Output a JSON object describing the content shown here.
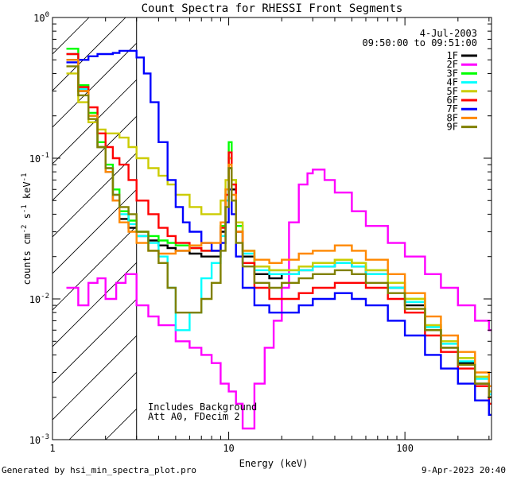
{
  "chart_data": {
    "type": "line",
    "title": "Count Spectra for RHESSI Front Segments",
    "xlabel": "Energy (keV)",
    "ylabel_parts": [
      "counts cm",
      "-2",
      " s",
      "-1",
      " keV",
      "-1"
    ],
    "xscale": "log",
    "yscale": "log",
    "xlim": [
      1,
      310
    ],
    "ylim": [
      0.001,
      1
    ],
    "x_tick_labels": [
      "1",
      "10",
      "100"
    ],
    "x_tick_values": [
      1,
      10,
      100
    ],
    "y_tick_labels": [
      {
        "base": "10",
        "exp": "-3",
        "value": 0.001
      },
      {
        "base": "10",
        "exp": "-2",
        "value": 0.01
      },
      {
        "base": "10",
        "exp": "-1",
        "value": 0.1
      },
      {
        "base": "10",
        "exp": "0",
        "value": 1
      }
    ],
    "legend_position": "top-right",
    "legend_header": [
      "4-Jul-2003",
      "09:50:00 to 09:51:00"
    ],
    "annotations": [
      "Includes Background",
      "Att A0, FDecim 2"
    ],
    "shaded_region": {
      "from": 1,
      "to": 3,
      "style": "diagonal-hatch"
    },
    "footer_left": "Generated by hsi_min_spectra_plot.pro",
    "footer_right": "9-Apr-2023 20:40",
    "series": [
      {
        "name": "1F",
        "color": "#000000",
        "x": [
          1.2,
          1.4,
          1.6,
          1.8,
          2.0,
          2.2,
          2.4,
          2.7,
          3.0,
          3.5,
          4.0,
          4.5,
          5.0,
          6.0,
          7.0,
          8.0,
          9.0,
          9.6,
          10.0,
          10.4,
          11.0,
          12.0,
          14.0,
          17.0,
          20.0,
          25.0,
          30.0,
          40.0,
          50.0,
          60.0,
          80.0,
          100.0,
          130.0,
          160.0,
          200.0,
          250.0,
          300.0
        ],
        "y": [
          0.5,
          0.3,
          0.2,
          0.12,
          0.08,
          0.05,
          0.037,
          0.032,
          0.028,
          0.026,
          0.024,
          0.023,
          0.022,
          0.021,
          0.02,
          0.02,
          0.03,
          0.05,
          0.085,
          0.06,
          0.03,
          0.02,
          0.015,
          0.014,
          0.015,
          0.016,
          0.017,
          0.018,
          0.017,
          0.015,
          0.012,
          0.009,
          0.006,
          0.0045,
          0.0035,
          0.0025,
          0.002
        ]
      },
      {
        "name": "2F",
        "color": "#ff00ff",
        "x": [
          1.2,
          1.4,
          1.6,
          1.8,
          2.0,
          2.3,
          2.6,
          3.0,
          3.5,
          4.0,
          5.0,
          6.0,
          7.0,
          8.0,
          9.0,
          10.0,
          11.0,
          12.0,
          14.0,
          16.0,
          18.0,
          20.0,
          22.0,
          25.0,
          28.0,
          30.0,
          35.0,
          40.0,
          50.0,
          60.0,
          80.0,
          100.0,
          130.0,
          160.0,
          200.0,
          250.0,
          300.0
        ],
        "y": [
          0.012,
          0.009,
          0.013,
          0.014,
          0.01,
          0.013,
          0.015,
          0.009,
          0.0075,
          0.0065,
          0.005,
          0.0045,
          0.004,
          0.0035,
          0.0025,
          0.0022,
          0.0018,
          0.0012,
          0.0025,
          0.0045,
          0.007,
          0.012,
          0.035,
          0.065,
          0.078,
          0.083,
          0.07,
          0.057,
          0.042,
          0.033,
          0.025,
          0.02,
          0.015,
          0.012,
          0.009,
          0.007,
          0.006
        ]
      },
      {
        "name": "3F",
        "color": "#00ff00",
        "x": [
          1.2,
          1.4,
          1.6,
          1.8,
          2.0,
          2.2,
          2.4,
          2.7,
          3.0,
          3.5,
          4.0,
          4.5,
          5.0,
          6.0,
          7.0,
          8.0,
          9.0,
          9.6,
          10.0,
          10.4,
          11.0,
          12.0,
          14.0,
          17.0,
          20.0,
          25.0,
          30.0,
          40.0,
          50.0,
          60.0,
          80.0,
          100.0,
          130.0,
          160.0,
          200.0,
          250.0,
          300.0
        ],
        "y": [
          0.6,
          0.33,
          0.21,
          0.13,
          0.09,
          0.06,
          0.042,
          0.036,
          0.03,
          0.028,
          0.026,
          0.025,
          0.024,
          0.023,
          0.022,
          0.022,
          0.033,
          0.06,
          0.13,
          0.07,
          0.033,
          0.022,
          0.017,
          0.016,
          0.016,
          0.017,
          0.018,
          0.019,
          0.018,
          0.016,
          0.013,
          0.01,
          0.0065,
          0.005,
          0.0038,
          0.0028,
          0.0022
        ]
      },
      {
        "name": "4F",
        "color": "#00ffff",
        "x": [
          1.2,
          1.4,
          1.6,
          1.8,
          2.0,
          2.2,
          2.4,
          2.7,
          3.0,
          3.5,
          4.0,
          4.5,
          5.0,
          6.0,
          7.0,
          8.0,
          9.0,
          9.6,
          10.0,
          10.4,
          11.0,
          12.0,
          14.0,
          17.0,
          20.0,
          25.0,
          30.0,
          40.0,
          50.0,
          60.0,
          80.0,
          100.0,
          130.0,
          160.0,
          200.0,
          250.0,
          300.0
        ],
        "y": [
          0.55,
          0.31,
          0.2,
          0.12,
          0.085,
          0.055,
          0.04,
          0.034,
          0.028,
          0.025,
          0.02,
          0.012,
          0.006,
          0.008,
          0.014,
          0.018,
          0.028,
          0.05,
          0.1,
          0.065,
          0.03,
          0.021,
          0.016,
          0.015,
          0.015,
          0.016,
          0.017,
          0.018,
          0.017,
          0.015,
          0.012,
          0.0095,
          0.0063,
          0.0048,
          0.0036,
          0.0027,
          0.0021
        ]
      },
      {
        "name": "5F",
        "color": "#cccc00",
        "x": [
          1.2,
          1.4,
          1.6,
          1.8,
          2.0,
          2.2,
          2.4,
          2.7,
          3.0,
          3.5,
          4.0,
          4.5,
          5.0,
          6.0,
          7.0,
          8.0,
          9.0,
          9.6,
          10.0,
          10.4,
          11.0,
          12.0,
          14.0,
          17.0,
          20.0,
          25.0,
          30.0,
          40.0,
          50.0,
          60.0,
          80.0,
          100.0,
          130.0,
          160.0,
          200.0,
          250.0,
          300.0
        ],
        "y": [
          0.4,
          0.25,
          0.18,
          0.16,
          0.15,
          0.15,
          0.14,
          0.12,
          0.1,
          0.085,
          0.075,
          0.065,
          0.055,
          0.045,
          0.04,
          0.04,
          0.05,
          0.07,
          0.1,
          0.07,
          0.035,
          0.022,
          0.017,
          0.016,
          0.016,
          0.017,
          0.018,
          0.019,
          0.018,
          0.016,
          0.013,
          0.01,
          0.0065,
          0.005,
          0.0038,
          0.0028,
          0.0022
        ]
      },
      {
        "name": "6F",
        "color": "#ff0000",
        "x": [
          1.2,
          1.4,
          1.6,
          1.8,
          2.0,
          2.2,
          2.4,
          2.7,
          3.0,
          3.5,
          4.0,
          4.5,
          5.0,
          6.0,
          7.0,
          8.0,
          9.0,
          9.6,
          10.0,
          10.4,
          11.0,
          12.0,
          14.0,
          17.0,
          20.0,
          25.0,
          30.0,
          40.0,
          50.0,
          60.0,
          80.0,
          100.0,
          130.0,
          160.0,
          200.0,
          250.0,
          300.0
        ],
        "y": [
          0.55,
          0.32,
          0.23,
          0.15,
          0.12,
          0.1,
          0.09,
          0.07,
          0.05,
          0.04,
          0.032,
          0.028,
          0.025,
          0.023,
          0.022,
          0.022,
          0.032,
          0.055,
          0.11,
          0.065,
          0.03,
          0.018,
          0.012,
          0.01,
          0.01,
          0.011,
          0.012,
          0.013,
          0.013,
          0.012,
          0.01,
          0.008,
          0.0055,
          0.0042,
          0.0032,
          0.0024,
          0.0018
        ]
      },
      {
        "name": "7F",
        "color": "#0000ff",
        "x": [
          1.2,
          1.4,
          1.6,
          1.8,
          2.0,
          2.2,
          2.4,
          2.7,
          3.0,
          3.3,
          3.6,
          4.0,
          4.5,
          5.0,
          5.5,
          6.0,
          7.0,
          8.0,
          9.0,
          9.6,
          10.0,
          10.4,
          11.0,
          12.0,
          14.0,
          17.0,
          20.0,
          25.0,
          30.0,
          40.0,
          50.0,
          60.0,
          80.0,
          100.0,
          130.0,
          160.0,
          200.0,
          250.0,
          300.0
        ],
        "y": [
          0.48,
          0.5,
          0.53,
          0.55,
          0.55,
          0.56,
          0.58,
          0.58,
          0.52,
          0.4,
          0.25,
          0.13,
          0.07,
          0.045,
          0.035,
          0.03,
          0.025,
          0.022,
          0.025,
          0.035,
          0.06,
          0.04,
          0.02,
          0.012,
          0.009,
          0.008,
          0.008,
          0.009,
          0.01,
          0.011,
          0.01,
          0.009,
          0.007,
          0.0055,
          0.004,
          0.0032,
          0.0025,
          0.0019,
          0.0015
        ]
      },
      {
        "name": "8F",
        "color": "#ff8800",
        "x": [
          1.2,
          1.4,
          1.6,
          1.8,
          2.0,
          2.2,
          2.4,
          2.7,
          3.0,
          3.5,
          4.0,
          4.5,
          5.0,
          6.0,
          7.0,
          8.0,
          9.0,
          9.6,
          10.0,
          10.4,
          11.0,
          12.0,
          14.0,
          17.0,
          20.0,
          25.0,
          30.0,
          40.0,
          50.0,
          60.0,
          80.0,
          100.0,
          130.0,
          160.0,
          200.0,
          250.0,
          300.0
        ],
        "y": [
          0.5,
          0.3,
          0.2,
          0.12,
          0.08,
          0.05,
          0.035,
          0.03,
          0.025,
          0.022,
          0.021,
          0.021,
          0.022,
          0.024,
          0.025,
          0.025,
          0.035,
          0.06,
          0.09,
          0.055,
          0.03,
          0.022,
          0.019,
          0.018,
          0.019,
          0.021,
          0.022,
          0.024,
          0.022,
          0.019,
          0.015,
          0.011,
          0.0075,
          0.0055,
          0.0042,
          0.003,
          0.0024
        ]
      },
      {
        "name": "9F",
        "color": "#808000",
        "x": [
          1.2,
          1.4,
          1.6,
          1.8,
          2.0,
          2.2,
          2.4,
          2.7,
          3.0,
          3.5,
          4.0,
          4.5,
          5.0,
          6.0,
          7.0,
          8.0,
          9.0,
          9.6,
          10.0,
          10.4,
          11.0,
          12.0,
          14.0,
          17.0,
          20.0,
          25.0,
          30.0,
          40.0,
          50.0,
          60.0,
          80.0,
          100.0,
          130.0,
          160.0,
          200.0,
          250.0,
          300.0
        ],
        "y": [
          0.45,
          0.28,
          0.19,
          0.12,
          0.085,
          0.055,
          0.045,
          0.04,
          0.03,
          0.022,
          0.018,
          0.012,
          0.008,
          0.008,
          0.01,
          0.013,
          0.022,
          0.045,
          0.085,
          0.05,
          0.025,
          0.017,
          0.013,
          0.012,
          0.013,
          0.014,
          0.015,
          0.016,
          0.015,
          0.013,
          0.011,
          0.0085,
          0.006,
          0.0045,
          0.0034,
          0.0025,
          0.002
        ]
      }
    ]
  }
}
